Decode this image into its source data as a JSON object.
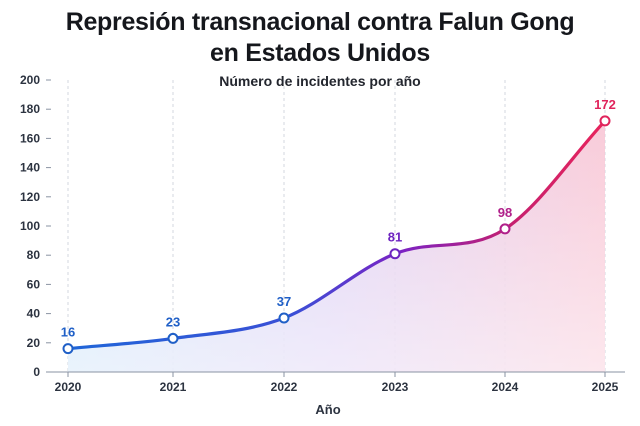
{
  "chart_data": {
    "type": "area",
    "title_line1": "Represión transnacional contra Falun Gong",
    "title_line2": "en Estados Unidos",
    "subtitle": "Número de incidentes por año",
    "xlabel": "Año",
    "ylabel": "",
    "x": [
      "2020",
      "2021",
      "2022",
      "2023",
      "2024",
      "2025"
    ],
    "values": [
      16,
      23,
      37,
      81,
      98,
      172
    ],
    "data_labels": [
      "16",
      "23",
      "37",
      "81",
      "98",
      "172"
    ],
    "ylim": [
      0,
      200
    ],
    "yticks": [
      "0",
      "20",
      "40",
      "60",
      "80",
      "100",
      "120",
      "140",
      "160",
      "180",
      "200"
    ],
    "grid": "vertical dashed",
    "colors": {
      "start": "#1f66d8",
      "mid": "#7b22c4",
      "end": "#e8245c",
      "point_labels": [
        "#1f5fc7",
        "#1f5fc7",
        "#1f5fc7",
        "#6d24c0",
        "#b0208a",
        "#e0245c"
      ]
    }
  }
}
